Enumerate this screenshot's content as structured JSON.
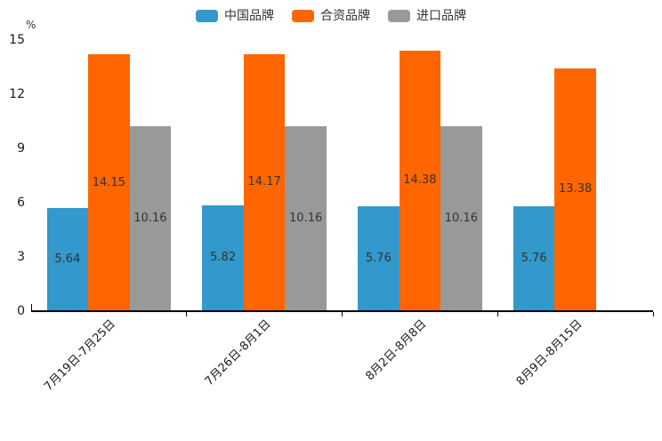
{
  "chart_data": {
    "type": "bar",
    "title": "",
    "ylabel": "%",
    "xlabel": "",
    "legend_position": "top",
    "grid": false,
    "ylim": [
      0,
      15
    ],
    "y_ticks": [
      0,
      3,
      6,
      9,
      12,
      15
    ],
    "categories": [
      "7月19日-7月25日",
      "7月26日-8月1日",
      "8月2日-8月8日",
      "8月9日-8月15日"
    ],
    "series": [
      {
        "name": "中国品牌",
        "slug": "china-brand",
        "color": "#3398CB",
        "values": [
          5.64,
          5.82,
          5.76,
          5.76
        ]
      },
      {
        "name": "合资品牌",
        "slug": "joint-venture-brand",
        "color": "#FF6600",
        "values": [
          14.15,
          14.17,
          14.38,
          13.38
        ]
      },
      {
        "name": "进口品牌",
        "slug": "import-brand",
        "color": "#999999",
        "values": [
          10.16,
          10.16,
          10.16,
          null
        ]
      }
    ],
    "bar_label_color": "#333333",
    "axis_color": "#000000",
    "background_color": "#FFFFFF"
  }
}
